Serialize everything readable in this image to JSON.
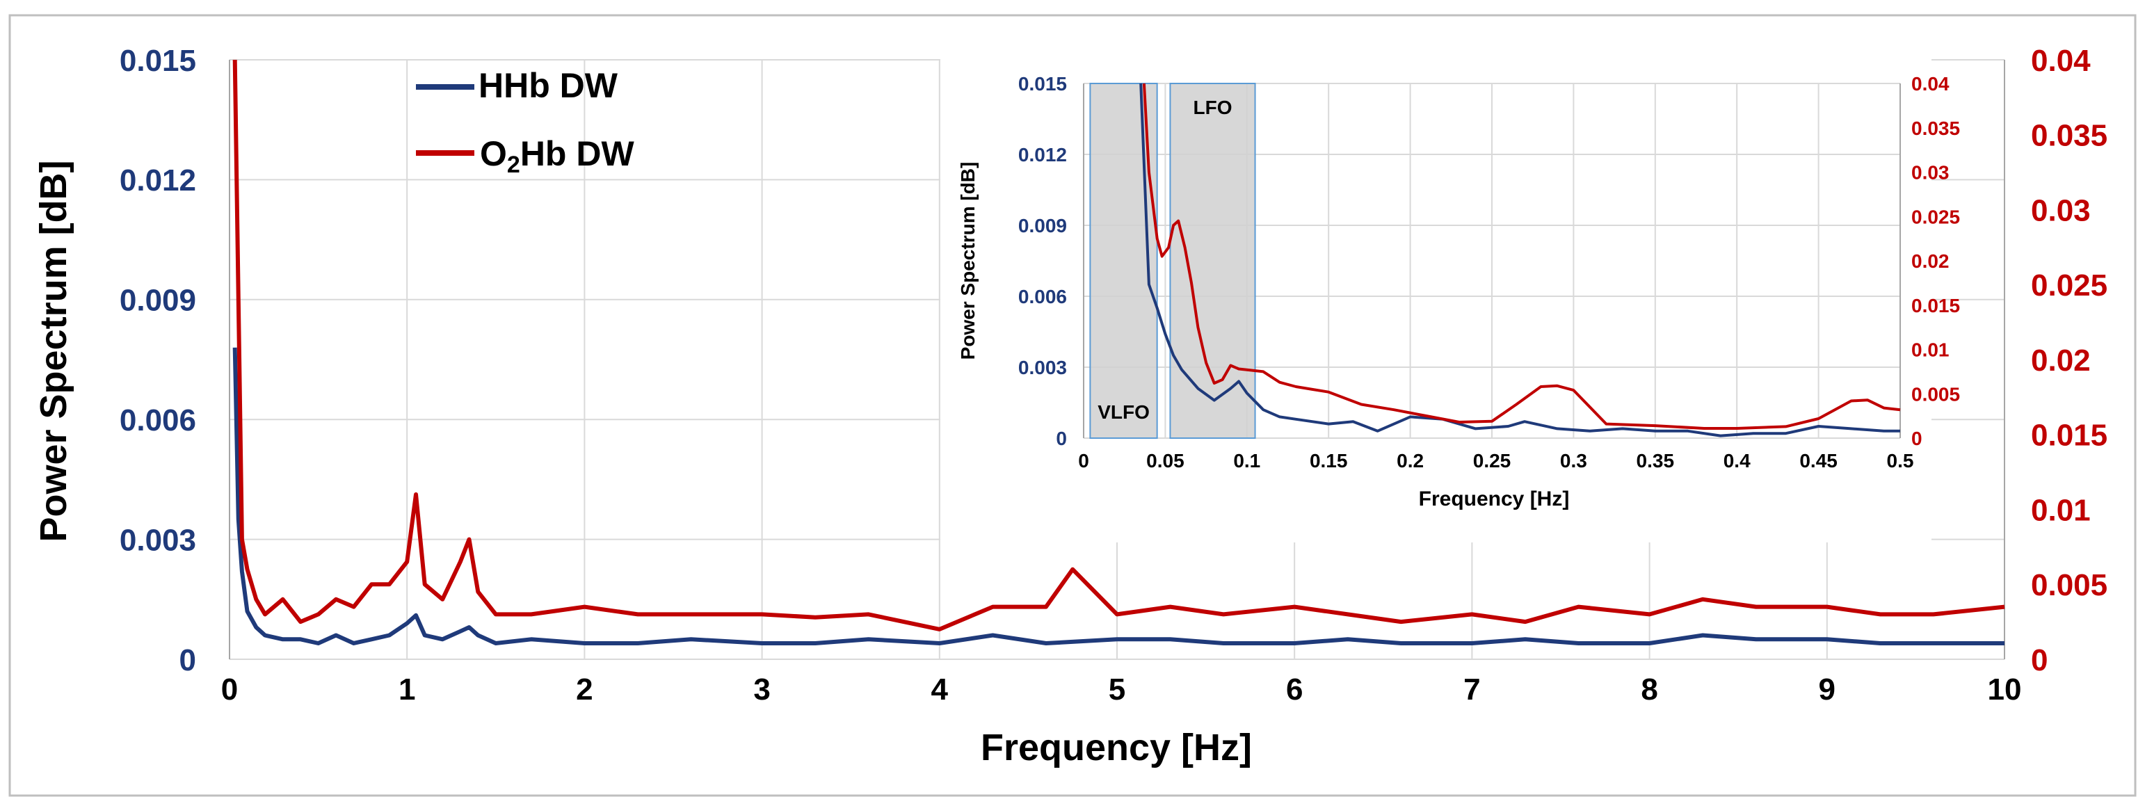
{
  "colors": {
    "hhb": "#1F3A7A",
    "o2hb": "#C00000",
    "left_axis": "#1F3A7A",
    "right_axis": "#C00000",
    "grid": "#D9D9D9",
    "frame": "#BFBFBF",
    "band_fill": "#D0D0D0",
    "band_edge": "#5B9BD5",
    "text": "#000000"
  },
  "chart_data": [
    {
      "id": "main",
      "type": "line",
      "title": "",
      "xlabel": "Frequency [Hz]",
      "ylabel": "Power Spectrum [dB]",
      "xlim": [
        0,
        10
      ],
      "ylim_left": [
        0,
        0.015
      ],
      "ylim_right": [
        0,
        0.04
      ],
      "x_ticks": [
        "0",
        "1",
        "2",
        "3",
        "4",
        "5",
        "6",
        "7",
        "8",
        "9",
        "10"
      ],
      "y_ticks_left": [
        "0",
        "0.003",
        "0.006",
        "0.009",
        "0.012",
        "0.015"
      ],
      "y_ticks_right": [
        "0",
        "0.005",
        "0.01",
        "0.015",
        "0.02",
        "0.025",
        "0.03",
        "0.035",
        "0.04"
      ],
      "grid": true,
      "legend": {
        "position": "top-left",
        "entries": [
          {
            "label": "HHb DW",
            "series": "HHb DW"
          },
          {
            "label_main": "O",
            "label_sub": "2",
            "label_rest": "Hb DW",
            "series": "O2Hb DW"
          }
        ]
      },
      "series": [
        {
          "name": "HHb DW",
          "axis": "left",
          "x": [
            0.03,
            0.05,
            0.07,
            0.1,
            0.15,
            0.2,
            0.3,
            0.4,
            0.5,
            0.6,
            0.7,
            0.8,
            0.9,
            1.0,
            1.05,
            1.1,
            1.2,
            1.3,
            1.35,
            1.4,
            1.5,
            1.7,
            2.0,
            2.3,
            2.6,
            3.0,
            3.3,
            3.6,
            4.0,
            4.3,
            4.6,
            5.0,
            5.3,
            5.6,
            6.0,
            6.3,
            6.6,
            7.0,
            7.3,
            7.6,
            8.0,
            8.3,
            8.6,
            9.0,
            9.3,
            9.6,
            10.0
          ],
          "y": [
            0.0078,
            0.0035,
            0.0022,
            0.0012,
            0.0008,
            0.0006,
            0.0005,
            0.0005,
            0.0004,
            0.0006,
            0.0004,
            0.0005,
            0.0006,
            0.0009,
            0.0011,
            0.0006,
            0.0005,
            0.0007,
            0.0008,
            0.0006,
            0.0004,
            0.0005,
            0.0004,
            0.0004,
            0.0005,
            0.0004,
            0.0004,
            0.0005,
            0.0004,
            0.0006,
            0.0004,
            0.0005,
            0.0005,
            0.0004,
            0.0004,
            0.0005,
            0.0004,
            0.0004,
            0.0005,
            0.0004,
            0.0004,
            0.0006,
            0.0005,
            0.0005,
            0.0004,
            0.0004,
            0.0004
          ]
        },
        {
          "name": "O2Hb DW",
          "axis": "right",
          "x": [
            0.03,
            0.05,
            0.07,
            0.1,
            0.15,
            0.2,
            0.3,
            0.4,
            0.5,
            0.6,
            0.7,
            0.8,
            0.9,
            1.0,
            1.05,
            1.1,
            1.2,
            1.3,
            1.35,
            1.4,
            1.5,
            1.7,
            2.0,
            2.3,
            2.6,
            3.0,
            3.3,
            3.6,
            4.0,
            4.3,
            4.6,
            4.75,
            5.0,
            5.3,
            5.6,
            6.0,
            6.3,
            6.6,
            7.0,
            7.3,
            7.6,
            8.0,
            8.3,
            8.6,
            9.0,
            9.3,
            9.6,
            10.0
          ],
          "y": [
            0.04,
            0.024,
            0.008,
            0.006,
            0.004,
            0.003,
            0.004,
            0.0025,
            0.003,
            0.004,
            0.0035,
            0.005,
            0.005,
            0.0065,
            0.011,
            0.005,
            0.004,
            0.0065,
            0.008,
            0.0045,
            0.003,
            0.003,
            0.0035,
            0.003,
            0.003,
            0.003,
            0.0028,
            0.003,
            0.002,
            0.0035,
            0.0035,
            0.006,
            0.003,
            0.0035,
            0.003,
            0.0035,
            0.003,
            0.0025,
            0.003,
            0.0025,
            0.0035,
            0.003,
            0.004,
            0.0035,
            0.0035,
            0.003,
            0.003,
            0.0035
          ]
        }
      ]
    },
    {
      "id": "inset",
      "type": "line",
      "title": "",
      "xlabel": "Frequency [Hz]",
      "ylabel": "Power Spectrum [dB]",
      "xlim": [
        0,
        0.5
      ],
      "ylim_left": [
        0,
        0.015
      ],
      "ylim_right": [
        0,
        0.04
      ],
      "x_ticks": [
        "0",
        "0.05",
        "0.1",
        "0.15",
        "0.2",
        "0.25",
        "0.3",
        "0.35",
        "0.4",
        "0.45",
        "0.5"
      ],
      "y_ticks_left": [
        "0",
        "0.003",
        "0.006",
        "0.009",
        "0.012",
        "0.015"
      ],
      "y_ticks_right": [
        "0",
        "0.005",
        "0.01",
        "0.015",
        "0.02",
        "0.025",
        "0.03",
        "0.035",
        "0.04"
      ],
      "grid": true,
      "bands": [
        {
          "label": "VLFO",
          "x_start": 0.004,
          "x_end": 0.045
        },
        {
          "label": "LFO",
          "x_start": 0.053,
          "x_end": 0.105
        }
      ],
      "series": [
        {
          "name": "HHb DW",
          "axis": "left",
          "x": [
            0.035,
            0.04,
            0.045,
            0.05,
            0.055,
            0.06,
            0.07,
            0.08,
            0.09,
            0.095,
            0.1,
            0.11,
            0.12,
            0.13,
            0.15,
            0.165,
            0.18,
            0.2,
            0.22,
            0.24,
            0.26,
            0.27,
            0.29,
            0.31,
            0.33,
            0.35,
            0.37,
            0.39,
            0.41,
            0.43,
            0.45,
            0.47,
            0.49,
            0.5
          ],
          "y": [
            0.015,
            0.0065,
            0.0055,
            0.0044,
            0.0035,
            0.0029,
            0.0021,
            0.0016,
            0.0021,
            0.0024,
            0.0019,
            0.0012,
            0.0009,
            0.0008,
            0.0006,
            0.0007,
            0.0003,
            0.0009,
            0.0008,
            0.0004,
            0.0005,
            0.0007,
            0.0004,
            0.0003,
            0.0004,
            0.0003,
            0.0003,
            0.0001,
            0.0002,
            0.0002,
            0.0005,
            0.0004,
            0.0003,
            0.0003
          ]
        },
        {
          "name": "O2Hb DW",
          "axis": "right",
          "x": [
            0.037,
            0.04,
            0.045,
            0.048,
            0.052,
            0.055,
            0.058,
            0.062,
            0.066,
            0.07,
            0.075,
            0.08,
            0.085,
            0.09,
            0.095,
            0.1,
            0.11,
            0.12,
            0.13,
            0.14,
            0.15,
            0.17,
            0.19,
            0.21,
            0.23,
            0.25,
            0.265,
            0.28,
            0.29,
            0.3,
            0.32,
            0.35,
            0.38,
            0.4,
            0.43,
            0.45,
            0.47,
            0.48,
            0.49,
            0.5
          ],
          "y": [
            0.04,
            0.03,
            0.0225,
            0.0205,
            0.0215,
            0.024,
            0.0245,
            0.0215,
            0.0175,
            0.0125,
            0.0085,
            0.0062,
            0.0066,
            0.0082,
            0.0078,
            0.0077,
            0.0075,
            0.0063,
            0.0058,
            0.0055,
            0.0052,
            0.0038,
            0.0032,
            0.0025,
            0.0018,
            0.0019,
            0.0038,
            0.0058,
            0.0059,
            0.0054,
            0.0016,
            0.0014,
            0.0011,
            0.0011,
            0.0013,
            0.0022,
            0.0042,
            0.0043,
            0.0034,
            0.0032
          ]
        }
      ]
    }
  ]
}
